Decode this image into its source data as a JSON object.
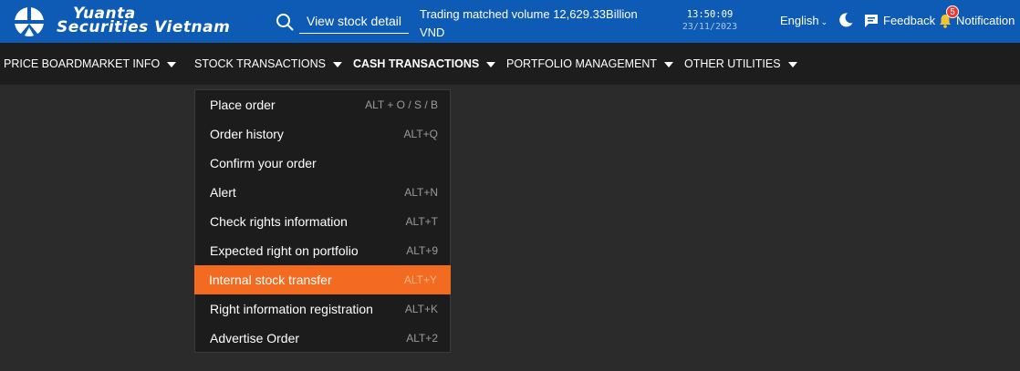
{
  "header": {
    "logo": {
      "line1": "Yuanta",
      "line2": "Securities Vietnam"
    },
    "search": {
      "label": "View stock detail"
    },
    "ticker": {
      "line1": "Trading matched volume 12,629.33Billion",
      "line2": "VND"
    },
    "clock": {
      "time": "13:50:09",
      "date": "23/11/2023"
    },
    "language": {
      "label": "English"
    },
    "feedback": {
      "label": "Feedback"
    },
    "notification": {
      "label": "Notification",
      "count": "5"
    },
    "colors": {
      "brand": "#0d5bb4",
      "badge": "#e53935"
    }
  },
  "nav": {
    "items": [
      {
        "label": "PRICE BOARD"
      },
      {
        "label": "MARKET INFO"
      },
      {
        "label": "STOCK TRANSACTIONS"
      },
      {
        "label": "CASH TRANSACTIONS"
      },
      {
        "label": "PORTFOLIO MANAGEMENT"
      },
      {
        "label": "OTHER UTILITIES"
      }
    ]
  },
  "dropdown": {
    "active_color": "#f26b21",
    "items": [
      {
        "label": "Place order",
        "shortcut": "ALT + O / S / B"
      },
      {
        "label": "Order history",
        "shortcut": "ALT+Q"
      },
      {
        "label": "Confirm your order",
        "shortcut": ""
      },
      {
        "label": "Alert",
        "shortcut": "ALT+N"
      },
      {
        "label": "Check rights information",
        "shortcut": "ALT+T"
      },
      {
        "label": "Expected right on portfolio",
        "shortcut": "ALT+9"
      },
      {
        "label": "Internal stock transfer",
        "shortcut": "ALT+Y"
      },
      {
        "label": "Right information registration",
        "shortcut": "ALT+K"
      },
      {
        "label": "Advertise Order",
        "shortcut": "ALT+2"
      }
    ]
  }
}
